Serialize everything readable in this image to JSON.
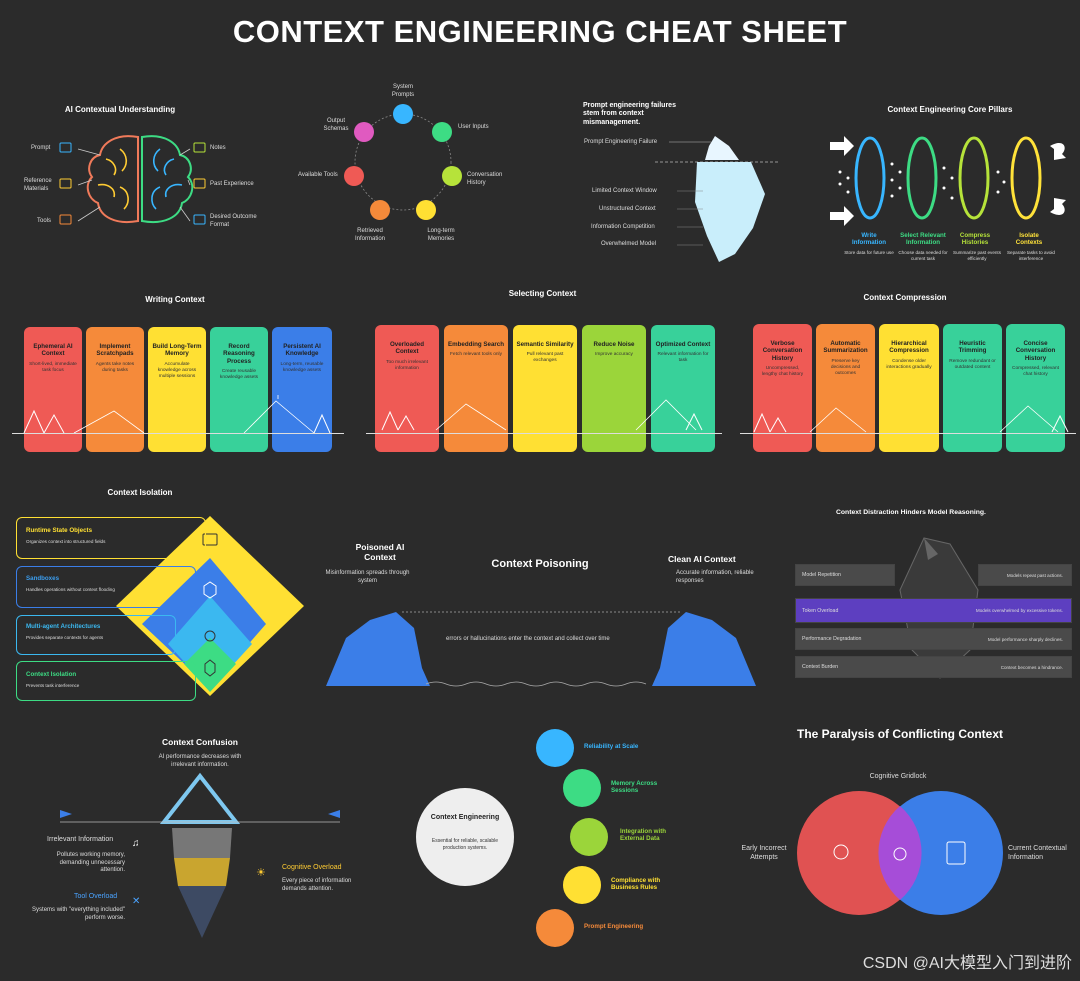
{
  "title": "CONTEXT ENGINEERING CHEAT SHEET",
  "ai_understanding": {
    "title": "AI Contextual Understanding",
    "left": [
      "Prompt",
      "Reference Materials",
      "Tools"
    ],
    "right": [
      "Notes",
      "Past Experience",
      "Desired Outcome Format"
    ]
  },
  "cycle": {
    "items": [
      "System Prompts",
      "User Inputs",
      "Conversation History",
      "Long-term Memories",
      "Retrieved Information",
      "Available Tools",
      "Output Schemas"
    ]
  },
  "iceberg": {
    "title": "Prompt engineering failures stem from context mismanagement.",
    "tip": "Prompt Engineering Failure",
    "items": [
      "Limited Context Window",
      "Unstructured Context",
      "Information Competition",
      "Overwhelmed Model"
    ]
  },
  "pillars": {
    "title": "Context Engineering Core Pillars",
    "items": [
      {
        "name": "Write Information",
        "desc": "Store data for future use",
        "color": "#38b6ff"
      },
      {
        "name": "Select Relevant Information",
        "desc": "Choose data needed for current task",
        "color": "#3ddc84"
      },
      {
        "name": "Compress Histories",
        "desc": "Summarize past events efficiently",
        "color": "#b6e33a"
      },
      {
        "name": "Isolate Contexts",
        "desc": "Separate tasks to avoid interference",
        "color": "#ffe23a"
      }
    ]
  },
  "writing": {
    "title": "Writing Context",
    "cards": [
      {
        "name": "Ephemeral AI Context",
        "desc": "Short-lived, immediate task focus",
        "color": "#ef5a55"
      },
      {
        "name": "Implement Scratchpads",
        "desc": "Agents take notes during tasks",
        "color": "#f58a3a"
      },
      {
        "name": "Build Long-Term Memory",
        "desc": "Accumulate knowledge across multiple sessions",
        "color": "#ffe033"
      },
      {
        "name": "Record Reasoning Process",
        "desc": "Create reusable knowledge assets",
        "color": "#38d19a"
      },
      {
        "name": "Persistent AI Knowledge",
        "desc": "Long-term, reusable knowledge assets",
        "color": "#3b7ee8"
      }
    ]
  },
  "selecting": {
    "title": "Selecting Context",
    "cards": [
      {
        "name": "Overloaded Context",
        "desc": "Too much irrelevant information",
        "color": "#ef5a55"
      },
      {
        "name": "Embedding Search",
        "desc": "Fetch relevant tools only",
        "color": "#f58a3a"
      },
      {
        "name": "Semantic Similarity",
        "desc": "Pull relevant past exchanges",
        "color": "#ffe033"
      },
      {
        "name": "Reduce Noise",
        "desc": "Improve accuracy",
        "color": "#9bd53a"
      },
      {
        "name": "Optimized Context",
        "desc": "Relevant information for task",
        "color": "#38d19a"
      }
    ]
  },
  "compression": {
    "title": "Context Compression",
    "cards": [
      {
        "name": "Verbose Conversation History",
        "desc": "Uncompressed, lengthy chat history",
        "color": "#ef5a55"
      },
      {
        "name": "Automatic Summarization",
        "desc": "Preserve key decisions and outcomes",
        "color": "#f58a3a"
      },
      {
        "name": "Hierarchical Compression",
        "desc": "Condense older interactions gradually",
        "color": "#ffe033"
      },
      {
        "name": "Heuristic Trimming",
        "desc": "Remove redundant or outdated content",
        "color": "#38d19a"
      },
      {
        "name": "Concise Conversation History",
        "desc": "Compressed, relevant chat history",
        "color": "#38d19a"
      }
    ]
  },
  "isolation": {
    "title": "Context Isolation",
    "items": [
      {
        "name": "Runtime State Objects",
        "desc": "Organizes context into structured fields",
        "color": "#ffe033"
      },
      {
        "name": "Sandboxes",
        "desc": "Handles operations without context flooding",
        "color": "#3b7ee8"
      },
      {
        "name": "Multi-agent Architectures",
        "desc": "Provides separate contexts for agents",
        "color": "#3bb8f0"
      },
      {
        "name": "Context Isolation",
        "desc": "Prevents task interference",
        "color": "#3ddc84"
      }
    ]
  },
  "poisoning": {
    "title": "Context Poisoning",
    "left_title": "Poisoned AI Context",
    "left_desc": "Misinformation spreads through system",
    "right_title": "Clean AI Context",
    "right_desc": "Accurate information, reliable responses",
    "middle": "errors or hallucinations enter the context and collect over time"
  },
  "distraction": {
    "title": "Context Distraction Hinders Model Reasoning.",
    "rows": [
      {
        "left": "Model Repetition",
        "right": "Models repeat past actions."
      },
      {
        "left": "Token Overload",
        "right": "Models overwhelmed by excessive tokens."
      },
      {
        "left": "Performance Degradation",
        "right": "Model performance sharply declines."
      },
      {
        "left": "Context Burden",
        "right": "Context becomes a hindrance."
      }
    ]
  },
  "confusion": {
    "title": "Context Confusion",
    "subtitle": "AI performance decreases with irrelevant information.",
    "irrelevant_title": "Irrelevant Information",
    "irrelevant_desc": "Pollutes working memory, demanding unnecessary attention.",
    "cognitive_title": "Cognitive Overload",
    "cognitive_desc": "Every piece of information demands attention.",
    "tool_title": "Tool Overload",
    "tool_desc": "Systems with \"everything included\" perform worse."
  },
  "production": {
    "center_title": "Context Engineering",
    "center_desc": "Essential for reliable, scalable production systems.",
    "items": [
      {
        "name": "Reliability at Scale",
        "color": "#38b6ff"
      },
      {
        "name": "Memory Across Sessions",
        "color": "#3ddc84"
      },
      {
        "name": "Integration with External Data",
        "color": "#9bd53a"
      },
      {
        "name": "Compliance with Business Rules",
        "color": "#ffe033"
      },
      {
        "name": "Prompt Engineering",
        "color": "#f58a3a"
      }
    ]
  },
  "paralysis": {
    "title": "The Paralysis of Conflicting Context",
    "top": "Cognitive Gridlock",
    "left": "Early Incorrect Attempts",
    "right": "Current Contextual Information"
  },
  "watermark": "CSDN @AI大模型入门到进阶"
}
